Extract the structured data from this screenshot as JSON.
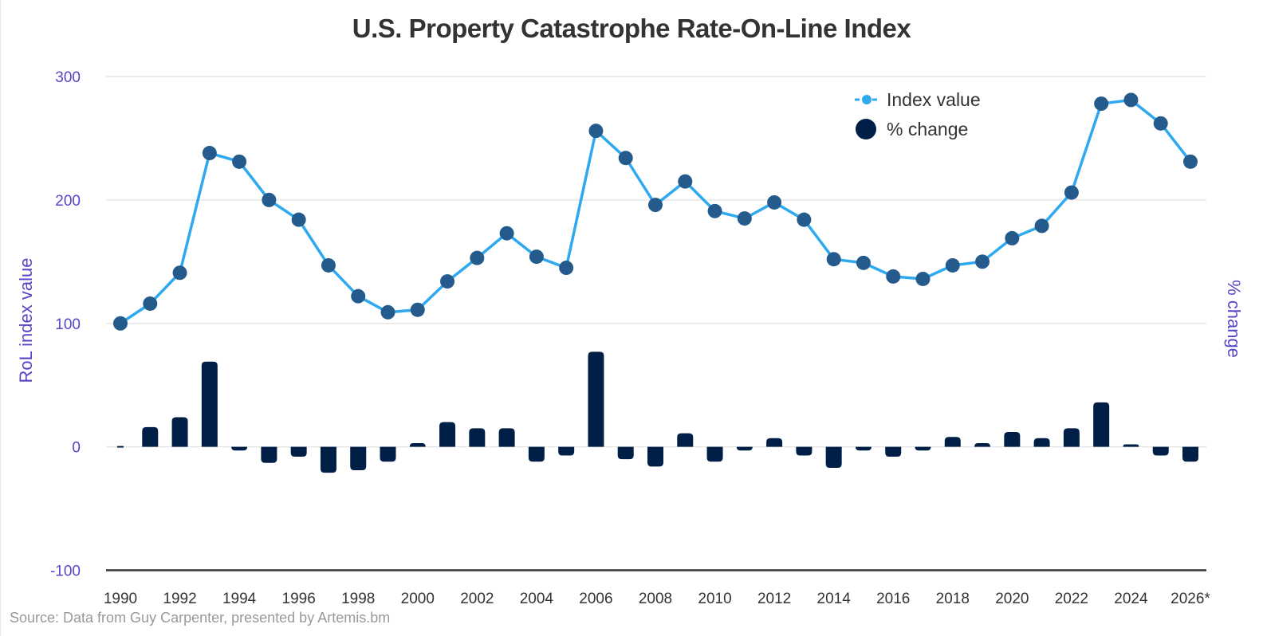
{
  "chart_data": {
    "type": "bar+line",
    "title": "U.S. Property Catastrophe Rate-On-Line Index",
    "xlabel": "",
    "ylabel": "RoL index value",
    "ylabel_right": "% change",
    "ylim": [
      -100,
      300
    ],
    "yticks": [
      300,
      200,
      100,
      0,
      -100
    ],
    "grid": true,
    "legend_position": "top-right",
    "source": "Source: Data from Guy Carpenter, presented by Artemis.bm",
    "categories": [
      "1990",
      "1991",
      "1992",
      "1993",
      "1994",
      "1995",
      "1996",
      "1997",
      "1998",
      "1999",
      "2000",
      "2001",
      "2002",
      "2003",
      "2004",
      "2005",
      "2006",
      "2007",
      "2008",
      "2009",
      "2010",
      "2011",
      "2012",
      "2013",
      "2014",
      "2015",
      "2016",
      "2017",
      "2018",
      "2019",
      "2020",
      "2021",
      "2022",
      "2023",
      "2024",
      "2025",
      "2026*"
    ],
    "xtick_labels": [
      "1990",
      "1992",
      "1994",
      "1996",
      "1998",
      "2000",
      "2002",
      "2004",
      "2006",
      "2008",
      "2010",
      "2012",
      "2014",
      "2016",
      "2018",
      "2020",
      "2022",
      "2024",
      "2026*"
    ],
    "series": [
      {
        "name": "Index value",
        "type": "line",
        "line_color": "#2ea9f0",
        "marker_color": "#255b8c",
        "values": [
          100,
          116,
          141,
          238,
          231,
          200,
          184,
          147,
          122,
          109,
          111,
          134,
          153,
          173,
          154,
          145,
          256,
          234,
          196,
          215,
          191,
          185,
          198,
          184,
          152,
          149,
          138,
          136,
          147,
          150,
          169,
          179,
          206,
          278,
          281,
          262,
          231
        ]
      },
      {
        "name": "% change",
        "type": "bar",
        "color": "#001f47",
        "values": [
          0,
          16,
          24,
          69,
          -3,
          -13,
          -8,
          -21,
          -19,
          -12,
          3,
          20,
          15,
          15,
          -12,
          -7,
          77,
          -10,
          -16,
          11,
          -12,
          -3,
          7,
          -7,
          -17,
          -3,
          -8,
          -3,
          8,
          3,
          12,
          7,
          15,
          36,
          2,
          -7,
          -12
        ]
      }
    ]
  }
}
